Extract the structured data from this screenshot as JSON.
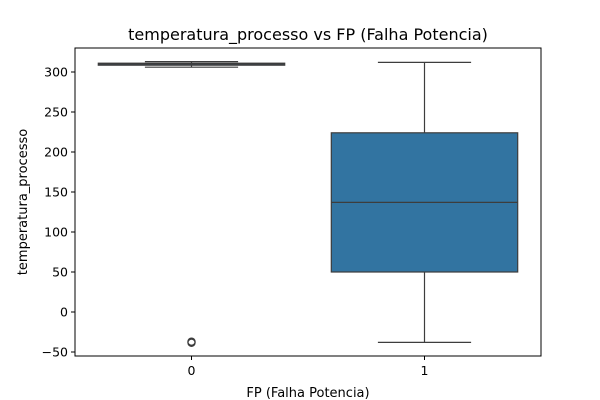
{
  "chart_data": {
    "type": "box",
    "title": "temperatura_processo vs FP (Falha Potencia)",
    "xlabel": "FP (Falha Potencia)",
    "ylabel": "temperatura_processo",
    "categories": [
      "0",
      "1"
    ],
    "ylim": [
      -55,
      330
    ],
    "yticks": [
      -50,
      0,
      50,
      100,
      150,
      200,
      250,
      300
    ],
    "grid": false,
    "boxes": [
      {
        "category": "0",
        "whisker_low": 306,
        "q1": 308.5,
        "median": 310,
        "q3": 311,
        "whisker_high": 313,
        "outliers": [
          -38,
          -37.5,
          -37,
          -38.5
        ]
      },
      {
        "category": "1",
        "whisker_low": -38,
        "q1": 50,
        "median": 137,
        "q3": 224,
        "whisker_high": 312,
        "outliers": []
      }
    ],
    "colors": {
      "box_fill": "#3274a1",
      "line": "#3d3d3d",
      "axis": "#000000"
    }
  }
}
